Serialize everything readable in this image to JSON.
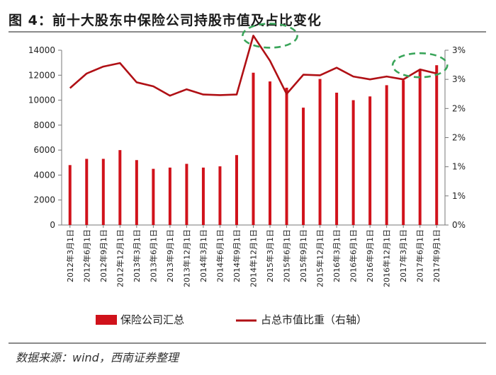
{
  "figure_title": "图 4：前十大股东中保险公司持股市值及占比变化",
  "source_note": "数据来源：wind，西南证券整理",
  "colors": {
    "bar": "#d0121b",
    "line": "#b01015",
    "highlight": "#3aa55a",
    "axis": "#777777"
  },
  "chart_data": {
    "type": "bar+line",
    "categories": [
      "2012年3月1日",
      "2012年6月1日",
      "2012年9月1日",
      "2012年12月1日",
      "2013年3月1日",
      "2013年6月1日",
      "2013年9月1日",
      "2013年12月1日",
      "2014年3月1日",
      "2014年6月1日",
      "2014年9月1日",
      "2014年12月1日",
      "2015年3月1日",
      "2015年6月1日",
      "2015年9月1日",
      "2015年12月1日",
      "2016年3月1日",
      "2016年6月1日",
      "2016年9月1日",
      "2016年12月1日",
      "2017年3月1日",
      "2017年6月1日",
      "2017年9月1日"
    ],
    "series": [
      {
        "name": "保险公司汇总",
        "type": "bar",
        "axis": "left",
        "values": [
          4800,
          5300,
          5300,
          6000,
          5200,
          4500,
          4600,
          4900,
          4600,
          4700,
          5600,
          12200,
          11500,
          11000,
          9400,
          11700,
          10600,
          10000,
          10300,
          11200,
          11600,
          12400,
          12800
        ]
      },
      {
        "name": "占总市值比重（右轴）",
        "type": "line",
        "axis": "right",
        "values": [
          2.35,
          2.6,
          2.72,
          2.78,
          2.45,
          2.38,
          2.22,
          2.33,
          2.24,
          2.23,
          2.24,
          3.25,
          2.82,
          2.25,
          2.58,
          2.57,
          2.7,
          2.55,
          2.5,
          2.55,
          2.5,
          2.67,
          2.6
        ]
      }
    ],
    "y_left": {
      "min": 0,
      "max": 14000,
      "ticks": [
        "0",
        "2000",
        "4000",
        "6000",
        "8000",
        "10000",
        "12000",
        "14000"
      ]
    },
    "y_right": {
      "min": 0,
      "max": 3,
      "ticks": [
        "0%",
        "1%",
        "1%",
        "2%",
        "2%",
        "3%",
        "3%"
      ]
    },
    "legend_position": "bottom",
    "highlight_categories": [
      [
        "2014年12月1日",
        "2015年6月1日"
      ],
      [
        "2017年3月1日",
        "2017年9月1日"
      ]
    ]
  }
}
